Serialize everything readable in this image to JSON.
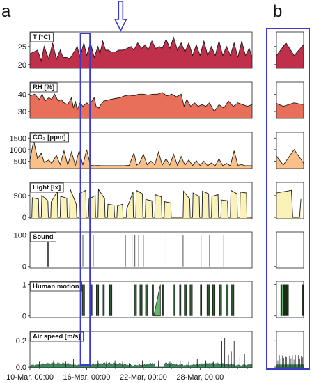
{
  "figure": {
    "panel_a_letter": "a",
    "panel_b_letter": "b"
  },
  "chart_data": [
    {
      "type": "area",
      "title": "T [°C]",
      "color": "#c0304a",
      "ylim": [
        19,
        29
      ],
      "yticks": [
        20,
        25
      ],
      "x_start": "10-Mar",
      "x_days": 23.5,
      "x": [
        0,
        0.8,
        1.2,
        1.5,
        2.0,
        2.4,
        2.8,
        3.2,
        3.5,
        3.9,
        4.2,
        5.0,
        5.3,
        5.7,
        6.0,
        6.4,
        6.8,
        7.2,
        7.4,
        7.7,
        8.0,
        8.3,
        8.6,
        9.0,
        9.4,
        9.8,
        10.3,
        10.7,
        11.0,
        11.4,
        11.8,
        12.2,
        12.5,
        12.9,
        13.3,
        13.7,
        14.0,
        14.4,
        14.8,
        15.2,
        15.6,
        16.0,
        16.4,
        16.8,
        17.2,
        17.6,
        18.0,
        18.4,
        18.8,
        19.2,
        19.6,
        20.0,
        20.4,
        20.8,
        21.2,
        21.6,
        22.0,
        22.4,
        22.8,
        23.2,
        23.5
      ],
      "y": [
        23,
        24,
        21,
        25,
        21.5,
        26,
        21.5,
        24,
        22,
        22,
        21.5,
        25,
        22,
        26,
        22.5,
        26,
        22,
        25,
        23,
        26.5,
        24,
        24,
        23.5,
        23.5,
        24,
        24,
        24.5,
        25,
        24,
        26,
        24.5,
        25.5,
        24,
        26.5,
        24.5,
        25,
        24.5,
        27,
        24.5,
        27.5,
        24,
        26,
        23.5,
        26,
        22.5,
        25.5,
        22.5,
        26.5,
        22.5,
        25,
        22.5,
        26.5,
        22.5,
        25,
        22.5,
        26,
        22,
        26.5,
        22.5,
        24.5,
        22
      ]
    },
    {
      "type": "area",
      "title": "RH [%]",
      "color": "#e8705a",
      "ylim": [
        26,
        47
      ],
      "yticks": [
        30,
        40
      ],
      "x_start": "10-Mar",
      "x_days": 23.5,
      "x": [
        0,
        0.5,
        1.0,
        1.3,
        1.6,
        2.0,
        2.3,
        2.6,
        3.0,
        3.3,
        3.6,
        4.0,
        4.4,
        4.6,
        4.8,
        5.0,
        5.3,
        5.6,
        6.0,
        6.3,
        6.8,
        7.0,
        7.3,
        7.5,
        7.8,
        8.2,
        8.5,
        9.0,
        9.5,
        10.0,
        10.5,
        11.0,
        11.5,
        12.0,
        12.5,
        13.0,
        13.5,
        14.0,
        14.5,
        15.0,
        15.5,
        16.0,
        16.3,
        16.6,
        17.0,
        17.4,
        17.8,
        18.2,
        18.6,
        19.0,
        19.5,
        20.0,
        20.5,
        21.0,
        21.5,
        22.0,
        22.5,
        23.0,
        23.5
      ],
      "y": [
        39,
        40,
        37,
        40,
        36,
        38,
        37,
        40,
        36,
        37,
        35,
        34,
        38,
        32,
        36,
        31,
        35,
        33,
        35,
        34,
        38,
        33,
        32,
        34,
        36,
        36.5,
        37,
        37.5,
        38,
        39,
        39.5,
        39,
        40,
        40,
        39.5,
        40,
        40,
        41,
        39,
        40,
        38.5,
        40,
        33,
        37,
        33,
        35,
        33,
        34,
        33,
        35,
        30,
        34,
        32,
        36,
        33,
        35,
        34,
        33,
        34
      ]
    },
    {
      "type": "area",
      "title": "CO₂ [ppm]",
      "color": "#f9c08a",
      "ylim": [
        180,
        1750
      ],
      "yticks": [
        500,
        1000,
        1500
      ],
      "x_start": "10-Mar",
      "x_days": 23.5,
      "x": [
        0,
        0.4,
        0.8,
        1.2,
        1.5,
        2.0,
        2.3,
        2.8,
        3.2,
        3.6,
        4.0,
        4.4,
        4.8,
        5.2,
        5.6,
        6.0,
        6.4,
        6.8,
        7.2,
        7.6,
        8.0,
        8.5,
        9.0,
        9.5,
        10.0,
        10.5,
        11.0,
        11.3,
        11.6,
        12.0,
        12.4,
        12.8,
        13.2,
        13.6,
        14.0,
        14.4,
        14.8,
        15.2,
        15.6,
        16.0,
        16.4,
        16.8,
        17.2,
        17.6,
        18.0,
        18.4,
        18.8,
        19.2,
        19.6,
        20.0,
        20.4,
        20.8,
        21.2,
        21.6,
        22.0,
        22.4,
        22.8,
        23.2,
        23.5
      ],
      "y": [
        550,
        1400,
        600,
        850,
        450,
        550,
        400,
        750,
        350,
        950,
        330,
        900,
        320,
        950,
        330,
        1000,
        320,
        300,
        310,
        300,
        300,
        300,
        300,
        300,
        300,
        320,
        850,
        330,
        420,
        800,
        340,
        500,
        330,
        900,
        330,
        600,
        330,
        800,
        320,
        700,
        320,
        550,
        310,
        520,
        310,
        500,
        300,
        420,
        300,
        600,
        300,
        400,
        300,
        950,
        320,
        350,
        300,
        300,
        300
      ]
    },
    {
      "type": "area",
      "title": "Light [lx]",
      "color": "#fbf2b8",
      "ylim": [
        -30,
        800
      ],
      "yticks": [
        0,
        500
      ],
      "x_start": "10-Mar",
      "x_days": 23.5,
      "x": [
        0,
        0.2,
        0.25,
        0.9,
        0.95,
        1.2,
        1.25,
        1.9,
        1.95,
        2.2,
        2.25,
        2.9,
        2.95,
        3.2,
        3.25,
        3.9,
        3.95,
        4.2,
        4.25,
        4.9,
        4.95,
        5.2,
        5.25,
        5.9,
        5.95,
        6.2,
        6.25,
        6.9,
        6.95,
        7.2,
        7.25,
        7.9,
        7.95,
        8.2,
        8.25,
        8.9,
        8.95,
        9.2,
        9.25,
        9.8,
        9.85,
        10.2,
        10.25,
        10.9,
        10.95,
        11.2,
        11.25,
        11.9,
        11.95,
        12.2,
        12.25,
        12.9,
        12.95,
        13.2,
        13.25,
        13.9,
        13.95,
        14.2,
        14.25,
        14.9,
        14.95,
        15.2,
        15.25,
        16.0,
        16.05,
        16.2,
        16.25,
        16.9,
        16.95,
        17.2,
        17.25,
        17.9,
        17.95,
        18.2,
        18.25,
        18.9,
        18.95,
        19.2,
        19.25,
        19.9,
        19.95,
        20.2,
        20.25,
        20.9,
        20.95,
        21.2,
        21.25,
        21.9,
        21.95,
        22.2,
        22.25,
        22.9,
        22.95,
        23.5
      ],
      "y": [
        0,
        0,
        450,
        420,
        0,
        0,
        500,
        380,
        0,
        0,
        350,
        600,
        0,
        0,
        480,
        440,
        0,
        0,
        650,
        300,
        0,
        0,
        550,
        620,
        0,
        0,
        420,
        500,
        0,
        0,
        640,
        430,
        0,
        0,
        300,
        280,
        0,
        0,
        260,
        300,
        0,
        0,
        200,
        580,
        0,
        0,
        620,
        540,
        0,
        0,
        410,
        380,
        0,
        0,
        520,
        470,
        0,
        0,
        360,
        330,
        0,
        0,
        0,
        0,
        0,
        0,
        600,
        420,
        0,
        0,
        560,
        480,
        0,
        0,
        600,
        540,
        0,
        0,
        480,
        520,
        0,
        0,
        400,
        380,
        0,
        0,
        620,
        540,
        0,
        0,
        580,
        560,
        0,
        0
      ]
    },
    {
      "type": "bar",
      "title": "Sound",
      "color": "#555555",
      "ylim": [
        -5,
        110
      ],
      "yticks": [
        0,
        100
      ],
      "x_start": "10-Mar",
      "x_days": 23.5,
      "x": [
        1.85,
        1.9,
        1.95,
        2.0,
        5.2,
        5.6,
        6.7,
        10.1,
        10.8,
        11.1,
        11.5,
        12.0,
        14.4,
        16.2,
        18.1,
        19.0,
        20.5
      ],
      "y": [
        100,
        100,
        100,
        100,
        100,
        100,
        100,
        100,
        100,
        100,
        100,
        100,
        100,
        100,
        100,
        100,
        100
      ]
    },
    {
      "type": "bar",
      "title": "Human motion",
      "color": "#1c2a1c",
      "fill_color": "#5fb86a",
      "ylim": [
        -0.05,
        1.1
      ],
      "yticks": [
        0,
        1
      ],
      "x_start": "10-Mar",
      "x_days": 23.5,
      "intervals": [
        [
          5.5,
          5.8
        ],
        [
          6.3,
          6.6
        ],
        [
          7.0,
          7.3
        ],
        [
          7.7,
          7.9
        ],
        [
          8.4,
          8.7
        ],
        [
          11.0,
          11.3
        ],
        [
          11.6,
          11.9
        ],
        [
          12.2,
          12.5
        ],
        [
          12.9,
          13.1
        ],
        [
          14.0,
          14.2
        ],
        [
          15.2,
          15.4
        ],
        [
          15.8,
          16.0
        ],
        [
          16.3,
          16.6
        ],
        [
          16.9,
          17.2
        ],
        [
          18.0,
          18.2
        ],
        [
          18.7,
          19.0
        ],
        [
          19.3,
          19.6
        ],
        [
          20.0,
          20.3
        ],
        [
          20.7,
          21.0
        ],
        [
          21.3,
          21.6
        ]
      ],
      "ramp": [
        [
          13.1,
          0.0
        ],
        [
          13.8,
          1.0
        ]
      ]
    },
    {
      "type": "bar",
      "title": "Air speed [m/s]",
      "color": "#222222",
      "fill_color": "#3d8a5e",
      "ylim": [
        -0.005,
        0.27
      ],
      "yticks": [
        0.0,
        0.2
      ],
      "x_start": "10-Mar",
      "x_days": 23.5,
      "baseline": 0.02,
      "spikes_x": [
        1.0,
        2.5,
        3.8,
        4.6,
        5.7,
        6.4,
        7.2,
        8.1,
        9.0,
        9.8,
        10.5,
        11.9,
        12.7,
        13.6,
        14.8,
        15.9,
        16.8,
        17.7,
        18.6,
        19.4,
        20.3,
        20.6,
        21.0,
        21.3,
        21.6,
        22.2,
        22.7
      ],
      "spikes_y": [
        0.04,
        0.05,
        0.04,
        0.06,
        0.05,
        0.04,
        0.05,
        0.04,
        0.05,
        0.04,
        0.03,
        0.05,
        0.04,
        0.05,
        0.04,
        0.05,
        0.04,
        0.06,
        0.05,
        0.04,
        0.2,
        0.22,
        0.09,
        0.12,
        0.2,
        0.08,
        0.1
      ]
    }
  ],
  "x_axis": {
    "tick_days": [
      0,
      6,
      12,
      18
    ],
    "tick_labels": [
      "10-Mar, 00:00",
      "16-Mar, 00:00",
      "22-Mar, 00:00",
      "28-Mar, 00:00"
    ]
  },
  "highlight": {
    "color": "#3a3ac8",
    "start_day": 5.35,
    "end_day": 6.35,
    "arrow_day": 9.6
  }
}
